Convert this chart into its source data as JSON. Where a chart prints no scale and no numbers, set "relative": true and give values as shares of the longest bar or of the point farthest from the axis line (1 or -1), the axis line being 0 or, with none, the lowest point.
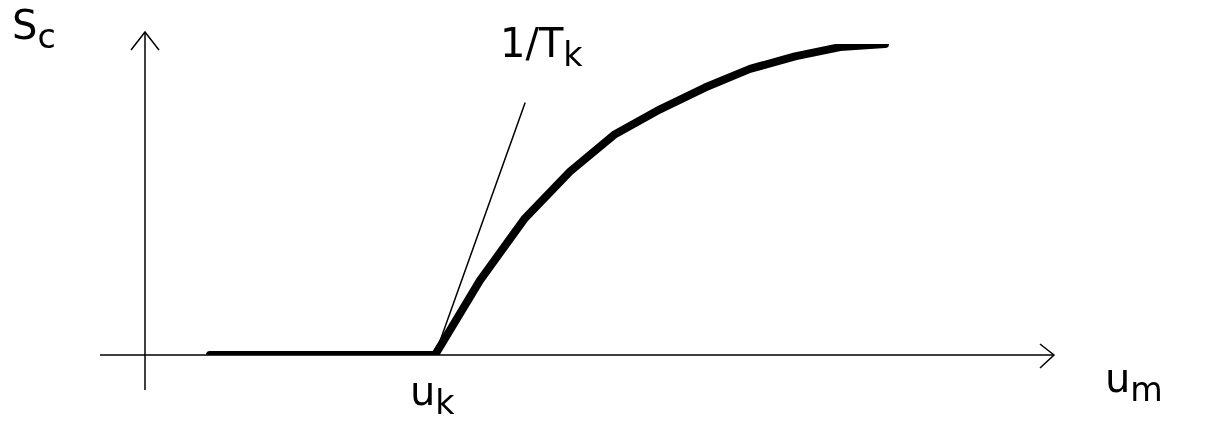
{
  "chart_data": {
    "type": "line",
    "relative": true,
    "xlabel": "u$_{m}$",
    "ylabel": "S$_{c}$",
    "categories": [
      null,
      null,
      null,
      null,
      null,
      null,
      null,
      null,
      null,
      null,
      null,
      null,
      null,
      null,
      null,
      null
    ],
    "marker": "none",
    "series": [
      {
        "color": "#000000",
        "values": [
          0,
          0,
          0,
          0,
          0,
          0,
          0.24,
          0.44,
          0.59,
          0.71,
          0.79,
          0.86,
          0.92,
          0.96,
          0.99,
          1
        ]
      },
      {
        "color": "#000000",
        "values": [
          null,
          null,
          null,
          null,
          null,
          0,
          null,
          0.81,
          null,
          null,
          null,
          null,
          null,
          null,
          null,
          null
        ]
      }
    ],
    "annotations": [
      "1/T$_{k}$",
      "u$_{k}$"
    ]
  }
}
